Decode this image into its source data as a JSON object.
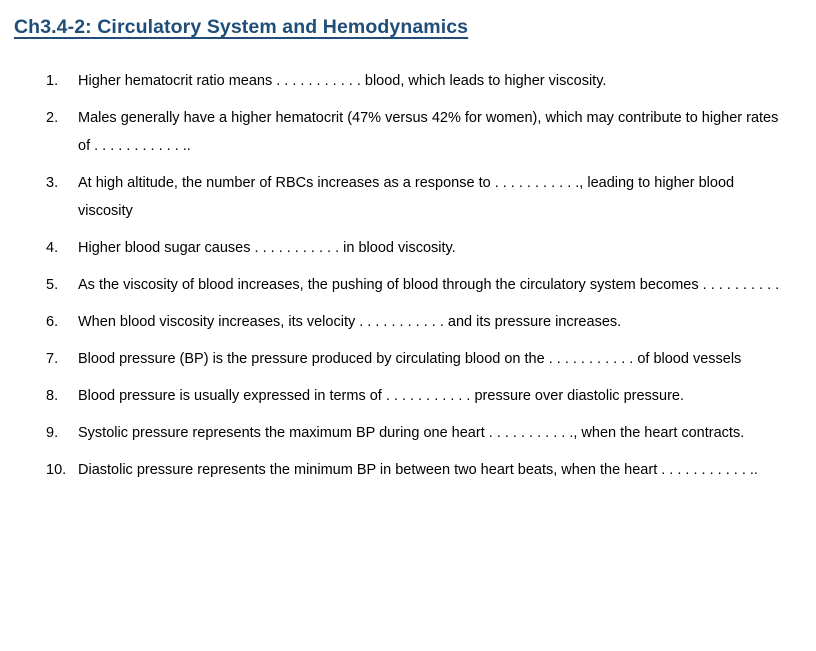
{
  "title": {
    "text": "Ch3.4-2: Circulatory System and Hemodynamics"
  },
  "colors": {
    "heading": "#1f4e79",
    "body_text": "#000000",
    "background": "#ffffff"
  },
  "list": {
    "items": [
      {
        "number": "1.",
        "text": "Higher hematocrit ratio means . . . . . . . . . . . blood, which leads to higher viscosity."
      },
      {
        "number": "2.",
        "text": "Males generally have a higher hematocrit (47% versus 42% for women), which may contribute to higher rates of . . . . . . . . . . . .."
      },
      {
        "number": "3.",
        "text": "At high altitude, the number of RBCs increases as a response to . . . . . . . . . . ., leading to higher blood viscosity"
      },
      {
        "number": "4.",
        "text": "Higher blood sugar causes . . . . . . . . . . . in blood viscosity."
      },
      {
        "number": "5.",
        "text": "As the viscosity of blood increases, the pushing of blood through the circulatory system becomes . . . . . . . . . ."
      },
      {
        "number": "6.",
        "text": "When blood viscosity increases, its velocity . . . . . . . . . . . and its pressure increases."
      },
      {
        "number": "7.",
        "text": "Blood pressure (BP) is the pressure produced by circulating blood on the . . . . . . . . . . . of blood vessels"
      },
      {
        "number": "8.",
        "text": "Blood pressure is usually expressed in terms of . . . . . . . . . . . pressure over diastolic pressure."
      },
      {
        "number": "9.",
        "text": "Systolic pressure represents the maximum BP during one heart . . . . . . . . . . ., when the heart contracts."
      },
      {
        "number": "10.",
        "text": "Diastolic pressure represents the minimum BP in between two heart beats, when the heart . . . . . . . . . . . .."
      }
    ]
  }
}
